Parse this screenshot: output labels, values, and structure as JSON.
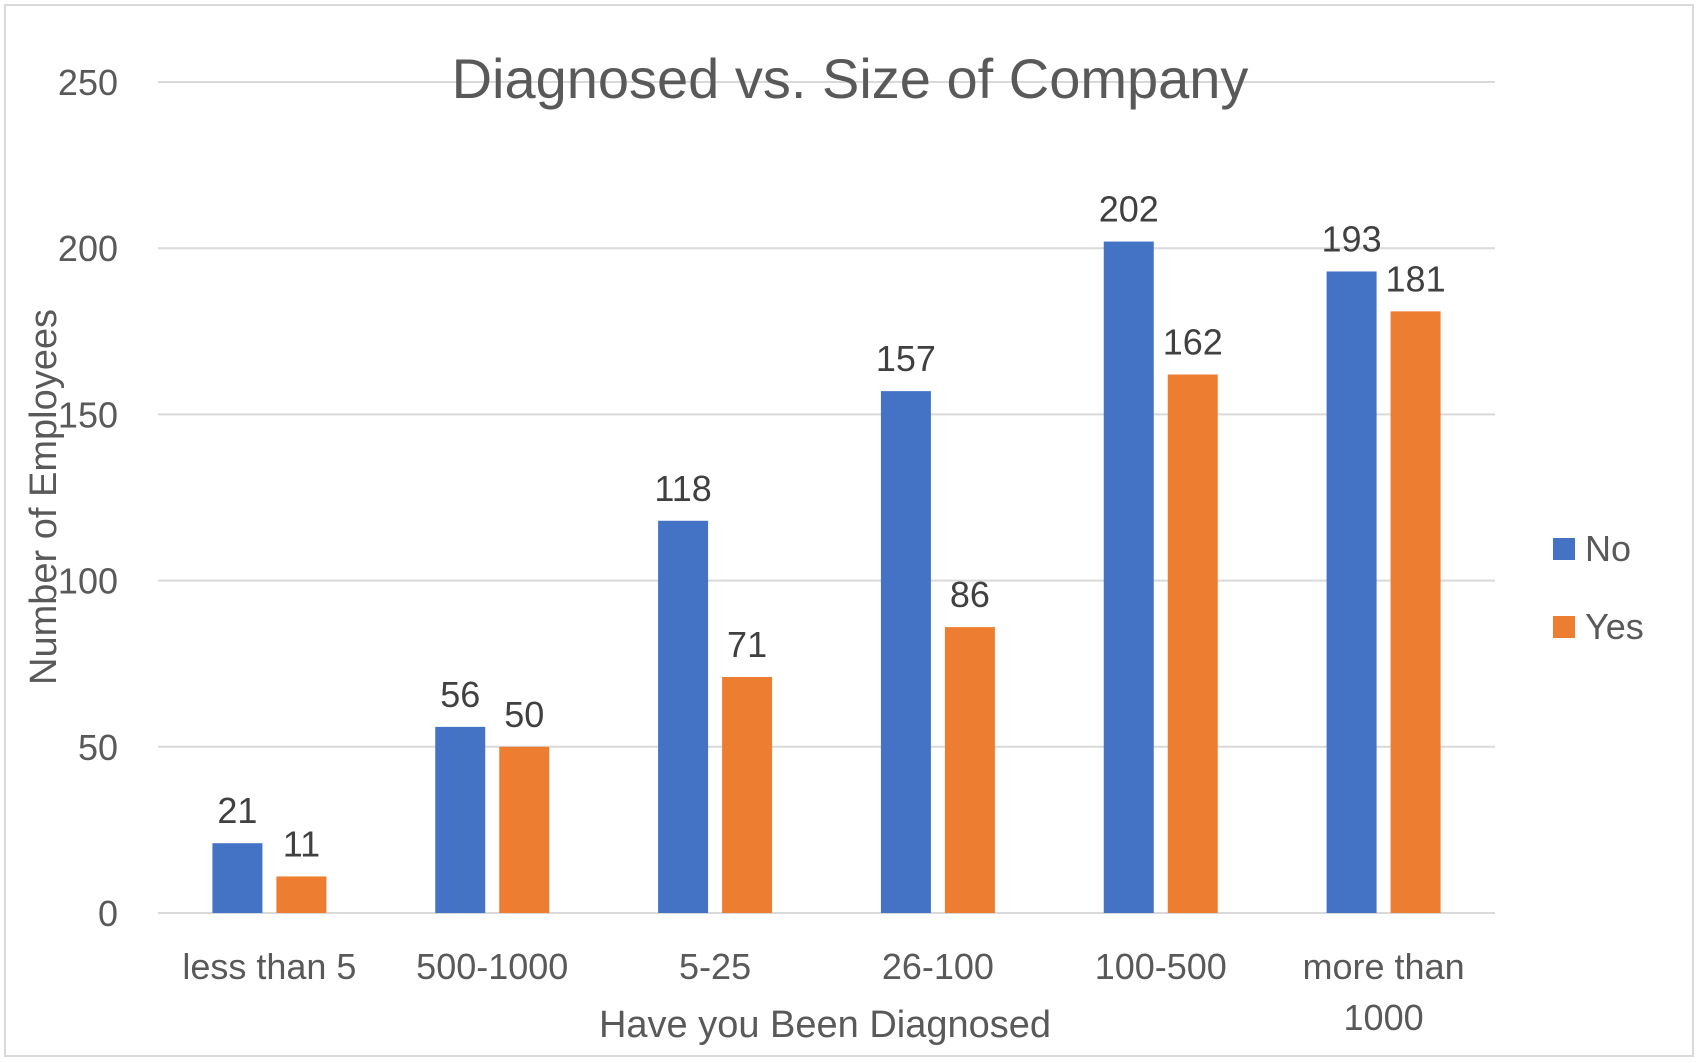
{
  "chart_data": {
    "type": "bar",
    "title": "Diagnosed vs. Size of Company",
    "xlabel": "Have you Been Diagnosed",
    "ylabel": "Number of Employees",
    "categories": [
      [
        "less than 5"
      ],
      [
        "500-1000"
      ],
      [
        "5-25"
      ],
      [
        "26-100"
      ],
      [
        "100-500"
      ],
      [
        "more than",
        "1000"
      ]
    ],
    "series": [
      {
        "name": "No",
        "color": "#4472C4",
        "values": [
          21,
          56,
          118,
          157,
          202,
          193
        ]
      },
      {
        "name": "Yes",
        "color": "#ED7D31",
        "values": [
          11,
          50,
          71,
          86,
          162,
          181
        ]
      }
    ],
    "ylim": [
      0,
      250
    ],
    "yticks": [
      0,
      50,
      100,
      150,
      200,
      250
    ],
    "grid": true,
    "legend": "right"
  }
}
